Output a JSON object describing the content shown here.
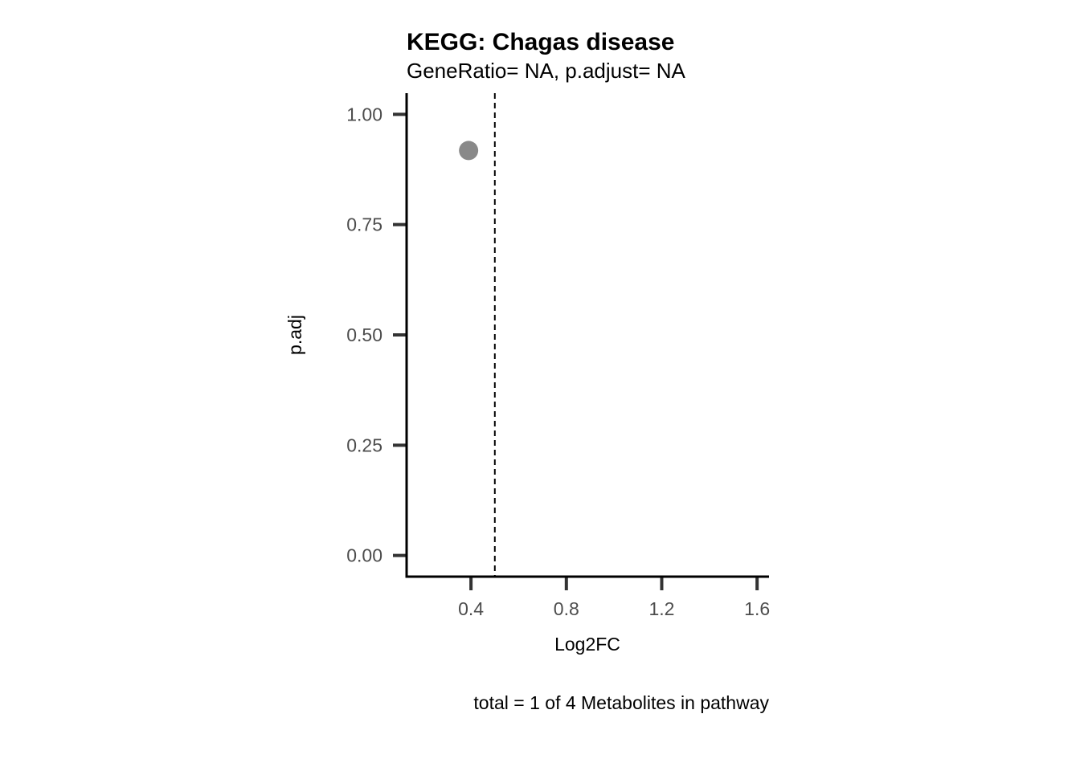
{
  "chart_data": {
    "type": "scatter",
    "title": "KEGG: Chagas disease",
    "subtitle": "GeneRatio= NA, p.adjust= NA",
    "xlabel": "Log2FC",
    "ylabel": "p.adj",
    "caption": "total = 1 of 4 Metabolites in pathway",
    "xlim": [
      0.13,
      1.65
    ],
    "ylim": [
      -0.048,
      1.048
    ],
    "x_ticks": [
      0.4,
      0.8,
      1.2,
      1.6
    ],
    "x_tick_labels": [
      "0.4",
      "0.8",
      "1.2",
      "1.6"
    ],
    "y_ticks": [
      0.0,
      0.25,
      0.5,
      0.75,
      1.0
    ],
    "y_tick_labels": [
      "0.00",
      "0.25",
      "0.50",
      "0.75",
      "1.00"
    ],
    "points": [
      {
        "x": 0.39,
        "y": 0.918,
        "color": "#898989"
      }
    ],
    "vline": {
      "x": 0.5,
      "style": "dashed",
      "color": "#000000"
    },
    "grid": false,
    "legend": "none"
  }
}
